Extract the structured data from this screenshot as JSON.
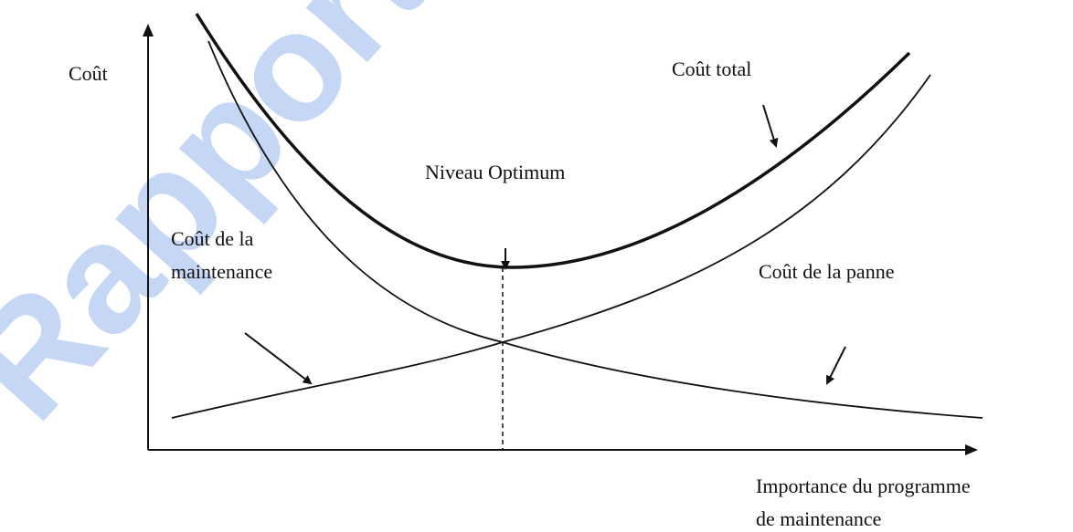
{
  "watermark": "Rapport",
  "axis_y_label": "Coût",
  "axis_x_label": [
    "Importance du programme",
    "de maintenance"
  ],
  "labels": {
    "total": "Coût total",
    "optimum": "Niveau Optimum",
    "maintenance": [
      "Coût de la",
      "maintenance"
    ],
    "panne": "Coût de la panne"
  }
}
